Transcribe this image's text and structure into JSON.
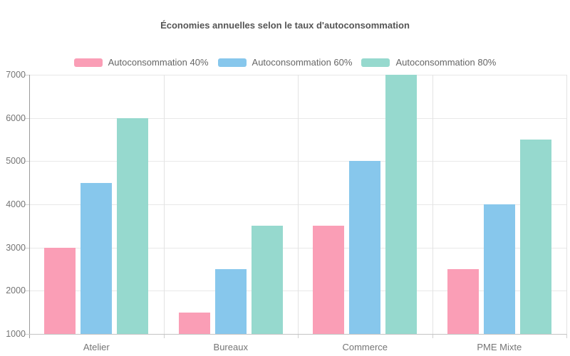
{
  "chart_data": {
    "type": "bar",
    "title": "Économies annuelles selon le taux d'autoconsommation",
    "categories": [
      "Atelier",
      "Bureaux",
      "Commerce",
      "PME Mixte"
    ],
    "series": [
      {
        "name": "Autoconsommation 40%",
        "color": "#FA9EB6",
        "values": [
          3000,
          1500,
          3500,
          2500
        ]
      },
      {
        "name": "Autoconsommation 60%",
        "color": "#87C7EC",
        "values": [
          4500,
          2500,
          5000,
          4000
        ]
      },
      {
        "name": "Autoconsommation 80%",
        "color": "#96D9CE",
        "values": [
          6000,
          3500,
          7000,
          5500
        ]
      }
    ],
    "xlabel": "",
    "ylabel": "",
    "ylim": [
      1000,
      7000
    ],
    "yticks": [
      1000,
      2000,
      3000,
      4000,
      5000,
      6000,
      7000
    ],
    "grid": true,
    "legend_position": "top"
  },
  "colors": {
    "background": "#ffffff",
    "gridline": "#e8e8e8",
    "category_boundary": "#e3e3e3",
    "y_axis_line": "#9a9a9a",
    "x_axis_line": "#c4c4c4",
    "tick_mark": "#d0d0d0",
    "tick_label": "#757575",
    "title_text": "#555555",
    "legend_text": "#666666"
  }
}
